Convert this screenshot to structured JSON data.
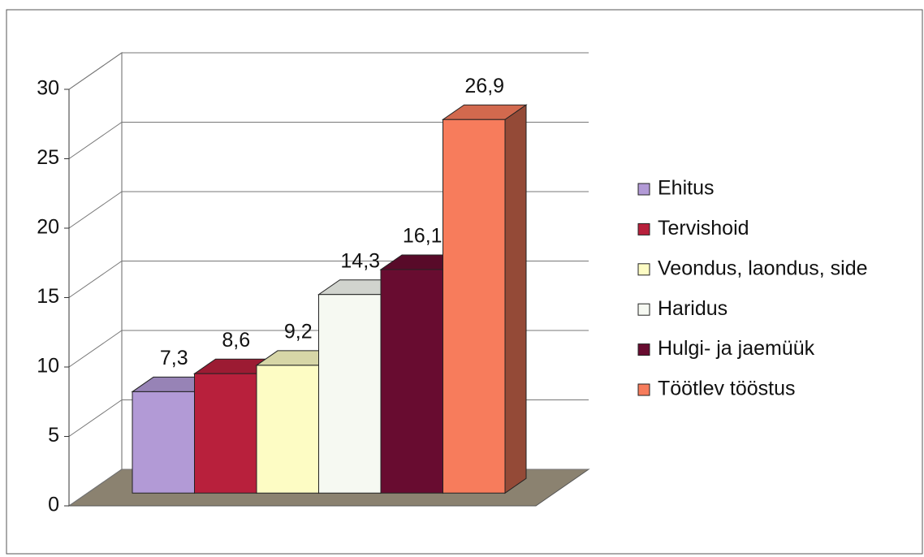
{
  "chart_data": {
    "type": "bar3d",
    "categories": [
      "Ehitus",
      "Tervishoid",
      "Veondus, laondus, side",
      "Haridus",
      "Hulgi- ja jaemüük",
      "Töötlev tööstus"
    ],
    "values": [
      7.3,
      8.6,
      9.2,
      14.3,
      16.1,
      26.9
    ],
    "value_labels": [
      "7,3",
      "8,6",
      "9,2",
      "14,3",
      "16,1",
      "26,9"
    ],
    "colors": [
      "#b29ad6",
      "#b8203c",
      "#fdfcc4",
      "#f6f9f2",
      "#680c30",
      "#f77c5c"
    ],
    "ylim": [
      0,
      30
    ],
    "yticks": [
      0,
      5,
      10,
      15,
      20,
      25,
      30
    ],
    "grid": true,
    "legend": "right"
  }
}
